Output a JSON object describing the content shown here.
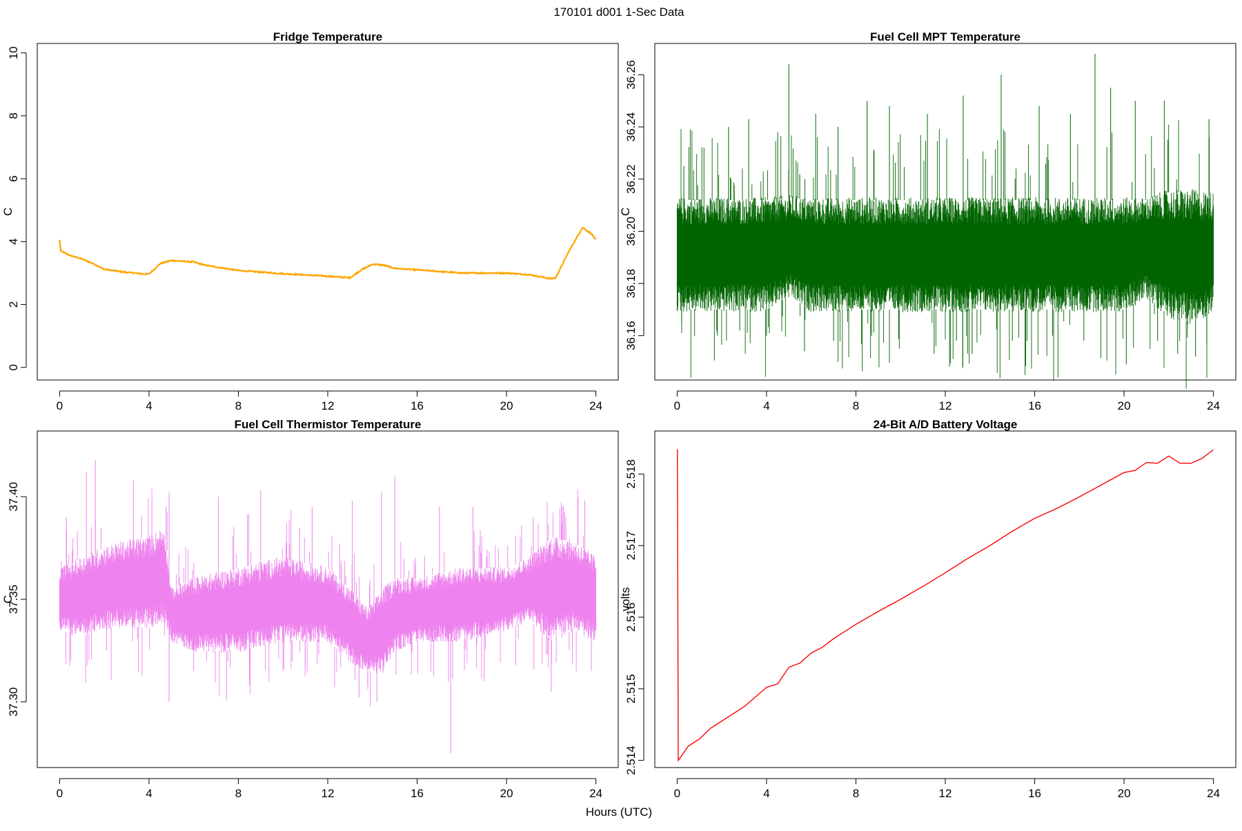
{
  "super_title": "170101   d001   1-Sec Data",
  "shared_xlabel": "Hours (UTC)",
  "chart_data": [
    {
      "type": "line",
      "title": "Fridge Temperature",
      "xlabel": "",
      "ylabel": "C",
      "xlim": [
        -1,
        25
      ],
      "ylim": [
        -0.4,
        10.3
      ],
      "x_ticks": [
        0,
        4,
        8,
        12,
        16,
        20,
        24
      ],
      "y_ticks": [
        0,
        2,
        4,
        6,
        8,
        10
      ],
      "y_tick_labels": [
        "0",
        "2",
        "4",
        "6",
        "8",
        "10"
      ],
      "color": "#FFA500",
      "noise_amplitude": 0.02,
      "series": [
        {
          "x": [
            0,
            0.05,
            0.5,
            1,
            1.5,
            2,
            3,
            3.8,
            4,
            4.5,
            5,
            6,
            6.5,
            8,
            10,
            12,
            13,
            13.5,
            14,
            14.5,
            15,
            16,
            18,
            20,
            21,
            22,
            22.2,
            22.8,
            23.4,
            23.8,
            24
          ],
          "y": [
            4.05,
            3.7,
            3.55,
            3.45,
            3.3,
            3.12,
            3.02,
            2.97,
            2.97,
            3.3,
            3.4,
            3.35,
            3.25,
            3.08,
            2.98,
            2.9,
            2.85,
            3.1,
            3.28,
            3.25,
            3.15,
            3.1,
            3.0,
            3.0,
            2.95,
            2.82,
            2.85,
            3.7,
            4.45,
            4.25,
            4.05
          ]
        }
      ]
    },
    {
      "type": "line",
      "title": "Fuel Cell MPT Temperature",
      "xlabel": "",
      "ylabel": "C",
      "xlim": [
        -1,
        25
      ],
      "ylim": [
        36.143,
        36.272
      ],
      "x_ticks": [
        0,
        4,
        8,
        12,
        16,
        20,
        24
      ],
      "y_ticks": [
        36.16,
        36.18,
        36.2,
        36.22,
        36.24,
        36.26
      ],
      "y_tick_labels": [
        "36.16",
        "36.18",
        "36.20",
        "36.22",
        "36.24",
        "36.26"
      ],
      "color": "#006400",
      "band": {
        "x": [
          0,
          2,
          4,
          5,
          6,
          8,
          10,
          12,
          14,
          16,
          18,
          20,
          21,
          22,
          23,
          24
        ],
        "low": [
          36.17,
          36.17,
          36.17,
          36.175,
          36.17,
          36.17,
          36.17,
          36.17,
          36.17,
          36.17,
          36.17,
          36.17,
          36.175,
          36.168,
          36.165,
          36.17
        ],
        "high": [
          36.212,
          36.212,
          36.212,
          36.213,
          36.212,
          36.212,
          36.212,
          36.212,
          36.212,
          36.212,
          36.212,
          36.212,
          36.212,
          36.215,
          36.215,
          36.214
        ]
      },
      "spikes_up": [
        [
          0.3,
          36.225
        ],
        [
          1.2,
          36.232
        ],
        [
          2.3,
          36.24
        ],
        [
          3.2,
          36.243
        ],
        [
          4.5,
          36.238
        ],
        [
          5.0,
          36.264
        ],
        [
          6.2,
          36.245
        ],
        [
          7.2,
          36.24
        ],
        [
          8.5,
          36.25
        ],
        [
          9.5,
          36.248
        ],
        [
          11.2,
          36.245
        ],
        [
          12.8,
          36.252
        ],
        [
          14.5,
          36.26
        ],
        [
          16.2,
          36.248
        ],
        [
          17.6,
          36.245
        ],
        [
          18.7,
          36.268
        ],
        [
          19.4,
          36.255
        ],
        [
          20.5,
          36.25
        ],
        [
          21.8,
          36.25
        ],
        [
          23.8,
          36.243
        ]
      ],
      "spikes_down": [
        [
          0.2,
          36.165
        ],
        [
          1.8,
          36.16
        ],
        [
          2.8,
          36.162
        ],
        [
          4.0,
          36.16
        ],
        [
          5.7,
          36.154
        ],
        [
          7.0,
          36.158
        ],
        [
          8.7,
          36.16
        ],
        [
          11.5,
          36.153
        ],
        [
          12.5,
          36.158
        ],
        [
          13.2,
          36.153
        ],
        [
          15.0,
          36.158
        ],
        [
          16.8,
          36.16
        ],
        [
          18.2,
          36.158
        ],
        [
          20.1,
          36.149
        ],
        [
          21.5,
          36.158
        ],
        [
          22.4,
          36.153
        ],
        [
          23.2,
          36.152
        ],
        [
          23.7,
          36.157
        ]
      ]
    },
    {
      "type": "line",
      "title": "Fuel Cell Thermistor Temperature",
      "xlabel": "",
      "ylabel": "C",
      "xlim": [
        -1,
        25
      ],
      "ylim": [
        37.268,
        37.432
      ],
      "x_ticks": [
        0,
        4,
        8,
        12,
        16,
        20,
        24
      ],
      "y_ticks": [
        37.3,
        37.35,
        37.4
      ],
      "y_tick_labels": [
        "37.30",
        "37.35",
        "37.40"
      ],
      "color": "#EE82EE",
      "band": {
        "x": [
          0,
          1,
          2,
          3,
          4,
          4.7,
          5.0,
          6,
          8,
          10,
          12,
          13,
          13.8,
          14.5,
          15,
          16,
          18,
          20,
          21,
          22,
          23,
          24
        ],
        "low": [
          37.335,
          37.332,
          37.336,
          37.337,
          37.336,
          37.34,
          37.33,
          37.325,
          37.325,
          37.33,
          37.33,
          37.32,
          37.315,
          37.315,
          37.325,
          37.33,
          37.33,
          37.335,
          37.34,
          37.33,
          37.335,
          37.33
        ],
        "high": [
          37.365,
          37.37,
          37.375,
          37.378,
          37.38,
          37.385,
          37.355,
          37.36,
          37.365,
          37.37,
          37.365,
          37.355,
          37.345,
          37.355,
          37.36,
          37.36,
          37.365,
          37.365,
          37.37,
          37.38,
          37.378,
          37.37
        ]
      },
      "spikes_up": [
        [
          0.3,
          37.39
        ],
        [
          1.2,
          37.412
        ],
        [
          1.6,
          37.418
        ],
        [
          3.3,
          37.408
        ],
        [
          4.9,
          37.402
        ],
        [
          7.1,
          37.4
        ],
        [
          9.0,
          37.403
        ],
        [
          11.3,
          37.395
        ],
        [
          13.1,
          37.398
        ],
        [
          14.4,
          37.402
        ],
        [
          15.0,
          37.41
        ],
        [
          17.0,
          37.395
        ],
        [
          18.5,
          37.395
        ],
        [
          21.2,
          37.39
        ],
        [
          22.5,
          37.395
        ],
        [
          23.5,
          37.398
        ]
      ],
      "spikes_down": [
        [
          0.5,
          37.32
        ],
        [
          2.1,
          37.325
        ],
        [
          4.9,
          37.3
        ],
        [
          6.0,
          37.315
        ],
        [
          8.5,
          37.318
        ],
        [
          10.0,
          37.315
        ],
        [
          13.4,
          37.302
        ],
        [
          14.2,
          37.3
        ],
        [
          17.5,
          37.275
        ],
        [
          19.0,
          37.31
        ],
        [
          22.0,
          37.305
        ],
        [
          23.8,
          37.315
        ]
      ]
    },
    {
      "type": "line",
      "title": "24-Bit A/D Battery Voltage",
      "xlabel": "",
      "ylabel": "volts",
      "xlim": [
        -1,
        25
      ],
      "ylim": [
        2.5139,
        2.5186
      ],
      "x_ticks": [
        0,
        4,
        8,
        12,
        16,
        20,
        24
      ],
      "y_ticks": [
        2.514,
        2.515,
        2.516,
        2.517,
        2.518
      ],
      "y_tick_labels": [
        "2.514",
        "2.515",
        "2.516",
        "2.517",
        "2.518"
      ],
      "color": "#FF0000",
      "series": [
        {
          "x": [
            0,
            0.01,
            0.05,
            0.5,
            1,
            1.5,
            2,
            3,
            4,
            4.5,
            5,
            5.5,
            6,
            6.5,
            7,
            7.5,
            8,
            9,
            10,
            11,
            12,
            13,
            14,
            15,
            16,
            17,
            18,
            19,
            20,
            20.5,
            21,
            21.5,
            22,
            22.5,
            23,
            23.5,
            24
          ],
          "y": [
            2.51834,
            2.51834,
            2.514,
            2.5142,
            2.5143,
            2.51445,
            2.51455,
            2.51475,
            2.51502,
            2.51507,
            2.5153,
            2.51536,
            2.5155,
            2.51558,
            2.5157,
            2.5158,
            2.5159,
            2.51608,
            2.51625,
            2.51643,
            2.51662,
            2.51682,
            2.517,
            2.5172,
            2.51738,
            2.51752,
            2.51768,
            2.51785,
            2.51802,
            2.51805,
            2.51816,
            2.51815,
            2.51825,
            2.51815,
            2.51815,
            2.51822,
            2.51834
          ]
        }
      ]
    }
  ]
}
